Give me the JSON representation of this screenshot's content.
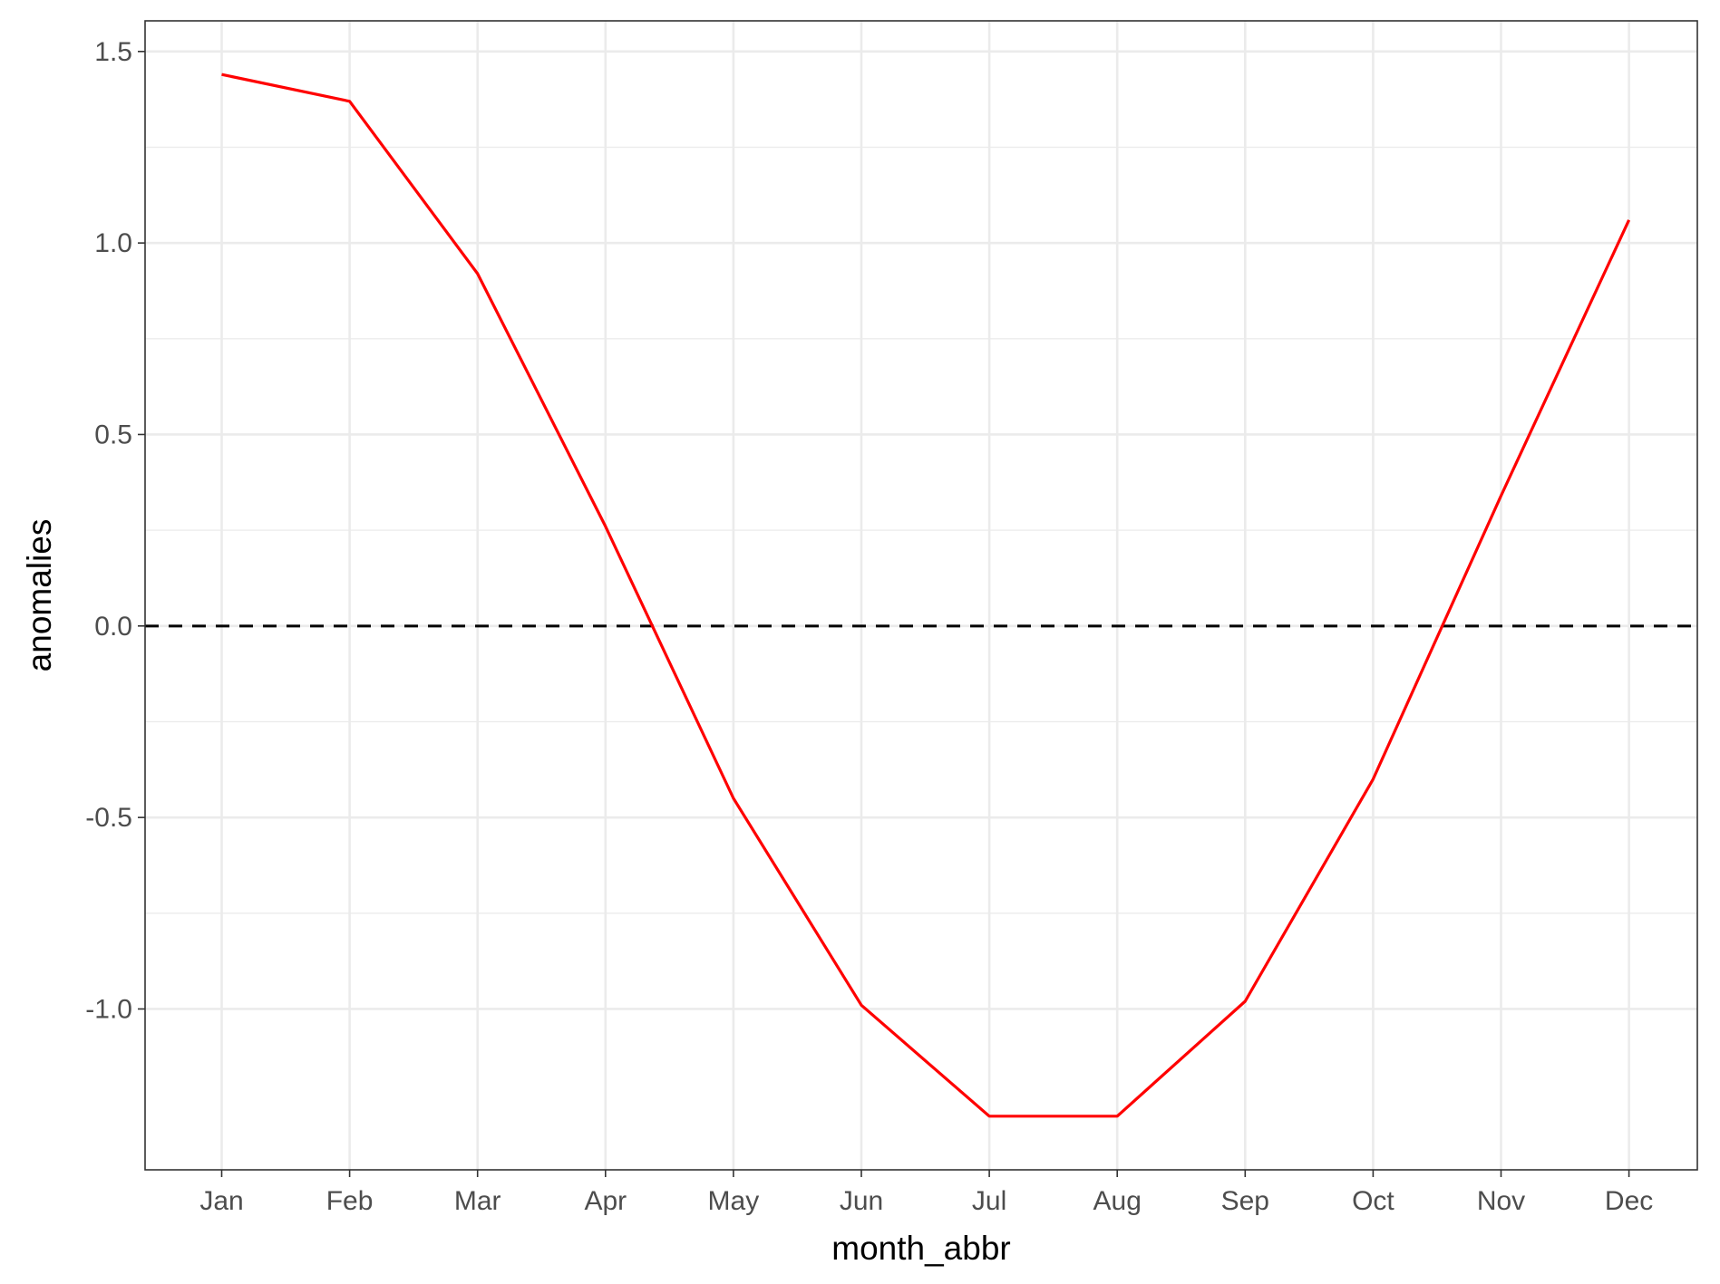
{
  "chart_data": {
    "type": "line",
    "title": "",
    "xlabel": "month_abbr",
    "ylabel": "anomalies",
    "categories": [
      "Jan",
      "Feb",
      "Mar",
      "Apr",
      "May",
      "Jun",
      "Jul",
      "Aug",
      "Sep",
      "Oct",
      "Nov",
      "Dec"
    ],
    "series": [
      {
        "values": [
          1.44,
          1.37,
          0.92,
          0.26,
          -0.45,
          -0.99,
          -1.28,
          -1.28,
          -0.98,
          -0.4,
          0.34,
          1.06
        ],
        "color": "#ff0000"
      }
    ],
    "reference_line": {
      "y": 0,
      "style": "dashed",
      "color": "#000000"
    },
    "yticks": [
      -1.0,
      -0.5,
      0.0,
      0.5,
      1.0,
      1.5
    ],
    "ytick_labels": [
      "-1.0",
      "-0.5",
      "0.0",
      "0.5",
      "1.0",
      "1.5"
    ],
    "ylim": [
      -1.42,
      1.58
    ],
    "grid": true,
    "legend": "none"
  }
}
